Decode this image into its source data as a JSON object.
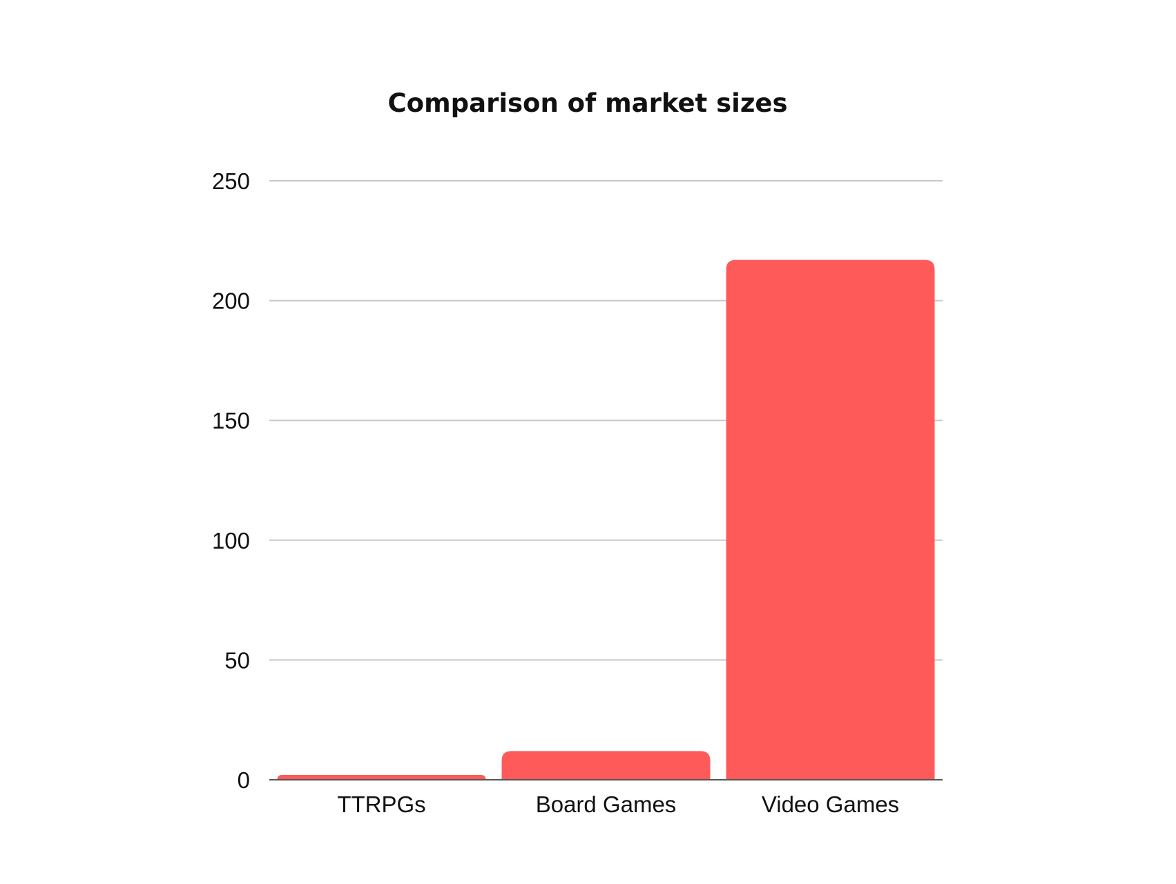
{
  "chart_data": {
    "type": "bar",
    "title": "Comparison of market sizes",
    "xlabel": "",
    "ylabel": "",
    "categories": [
      "TTRPGs",
      "Board Games",
      "Video Games"
    ],
    "values": [
      2,
      12,
      217
    ],
    "ylim": [
      0,
      250
    ],
    "yticks": [
      0,
      50,
      100,
      150,
      200,
      250
    ],
    "ytick_labels": [
      "0",
      "50",
      "100",
      "150",
      "200",
      "250"
    ],
    "grid": true,
    "legend": "none",
    "bar_color": "#ff5a5a"
  }
}
